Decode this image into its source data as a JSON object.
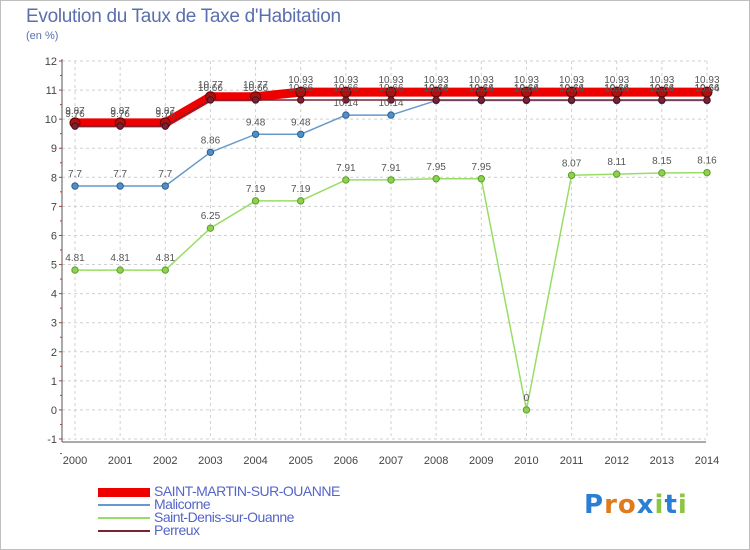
{
  "title": "Evolution du Taux de Taxe d'Habitation",
  "unit": "(en %)",
  "logo": {
    "text": "Proxiti",
    "letters": [
      "P",
      "r",
      "o",
      "x",
      "i",
      "t",
      "i"
    ],
    "colors": [
      "#2a7fd4",
      "#e07a1f",
      "#e07a1f",
      "#2a7fd4",
      "#8cc63f",
      "#2a7fd4",
      "#8cc63f"
    ]
  },
  "chart_data": {
    "type": "line",
    "title": "Evolution du Taux de Taxe d'Habitation",
    "ylabel": "(en %)",
    "xlabel": "",
    "ylim": [
      -1,
      12
    ],
    "yticks": [
      -1,
      0,
      1,
      2,
      3,
      4,
      5,
      6,
      7,
      8,
      9,
      10,
      11,
      12
    ],
    "grid": true,
    "legend_position": "bottom-left",
    "x": [
      "2000",
      "2001",
      "2002",
      "2003",
      "2004",
      "2005",
      "2006",
      "2007",
      "2008",
      "2009",
      "2010",
      "2011",
      "2012",
      "2013",
      "2014"
    ],
    "series": [
      {
        "name": "SAINT-MARTIN-SUR-OUANNE",
        "color": "#ee0000",
        "values": [
          9.87,
          9.87,
          9.87,
          10.77,
          10.77,
          10.93,
          10.93,
          10.93,
          10.93,
          10.93,
          10.93,
          10.93,
          10.93,
          10.93,
          10.93
        ],
        "labels": [
          "9.87",
          "9.87",
          "9.87",
          "10.77",
          "10.77",
          "10.93",
          "10.93",
          "10.93",
          "10.93",
          "10.93",
          "10.93",
          "10.93",
          "10.93",
          "10.93",
          "10.93"
        ]
      },
      {
        "name": "Malicorne",
        "color": "#6699cc",
        "values": [
          7.7,
          7.7,
          7.7,
          8.86,
          9.48,
          9.48,
          10.14,
          10.14,
          10.64,
          10.64,
          10.64,
          10.64,
          10.64,
          10.64,
          10.64
        ],
        "labels": [
          "7.7",
          "7.7",
          "7.7",
          "8.86",
          "9.48",
          "9.48",
          "10.14",
          "10.14",
          "10.64",
          "10.64",
          "10.64",
          "10.64",
          "10.64",
          "10.64",
          "10.64"
        ]
      },
      {
        "name": "Saint-Denis-sur-Ouanne",
        "color": "#99dd66",
        "values": [
          4.81,
          4.81,
          4.81,
          6.25,
          7.19,
          7.19,
          7.91,
          7.91,
          7.95,
          7.95,
          0,
          8.07,
          8.11,
          8.15,
          8.16
        ],
        "labels": [
          "4.81",
          "4.81",
          "4.81",
          "6.25",
          "7.19",
          "7.19",
          "7.91",
          "7.91",
          "7.95",
          "7.95",
          "0",
          "8.07",
          "8.11",
          "8.15",
          "8.16"
        ]
      },
      {
        "name": "Perreux",
        "color": "#7a2233",
        "values": [
          9.76,
          9.76,
          9.76,
          10.66,
          10.66,
          10.66,
          10.66,
          10.66,
          10.66,
          10.66,
          10.66,
          10.66,
          10.66,
          10.66,
          10.66
        ],
        "labels": [
          "9.76",
          "9.76",
          "9.76",
          "10.66",
          "10.66",
          "10.66",
          "10.66",
          "10.66",
          "10.66",
          "10.66",
          "10.66",
          "10.66",
          "10.66",
          "10.66",
          "10.66"
        ]
      }
    ]
  }
}
